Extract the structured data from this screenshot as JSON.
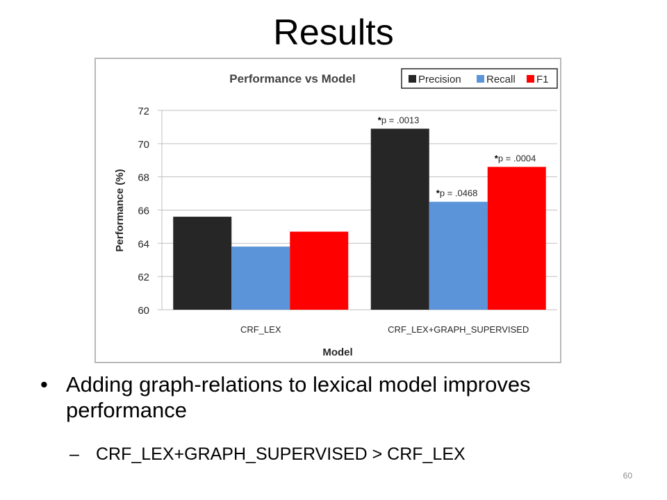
{
  "slide": {
    "title": "Results",
    "bullet_main": "Adding graph-relations to lexical model improves performance",
    "bullet_main_marker": "•",
    "bullet_sub_marker": "–",
    "bullet_sub": "CRF_LEX+GRAPH_SUPERVISED > CRF_LEX",
    "page_number": "60"
  },
  "colors": {
    "precision": "#262626",
    "recall": "#5b94d8",
    "f1": "#ff0000",
    "grid": "#bfbfbf",
    "frame": "#b8b8b8"
  },
  "chart_data": {
    "type": "bar",
    "title": "Performance vs Model",
    "xlabel": "Model",
    "ylabel": "Performance (%)",
    "categories": [
      "CRF_LEX",
      "CRF_LEX+GRAPH_SUPERVISED"
    ],
    "series": [
      {
        "name": "Precision",
        "values": [
          65.6,
          70.9
        ]
      },
      {
        "name": "Recall",
        "values": [
          63.8,
          66.5
        ]
      },
      {
        "name": "F1",
        "values": [
          64.7,
          68.6
        ]
      }
    ],
    "ylim": [
      60,
      72
    ],
    "yticks": [
      60,
      62,
      64,
      66,
      68,
      70,
      72
    ],
    "grid": true,
    "legend": "top-right",
    "annotations": [
      {
        "series": 0,
        "category": 1,
        "star": "*",
        "text": "p = .0013"
      },
      {
        "series": 1,
        "category": 1,
        "star": "*",
        "text": "p = .0468"
      },
      {
        "series": 2,
        "category": 1,
        "star": "*",
        "text": "p = .0004"
      }
    ]
  }
}
